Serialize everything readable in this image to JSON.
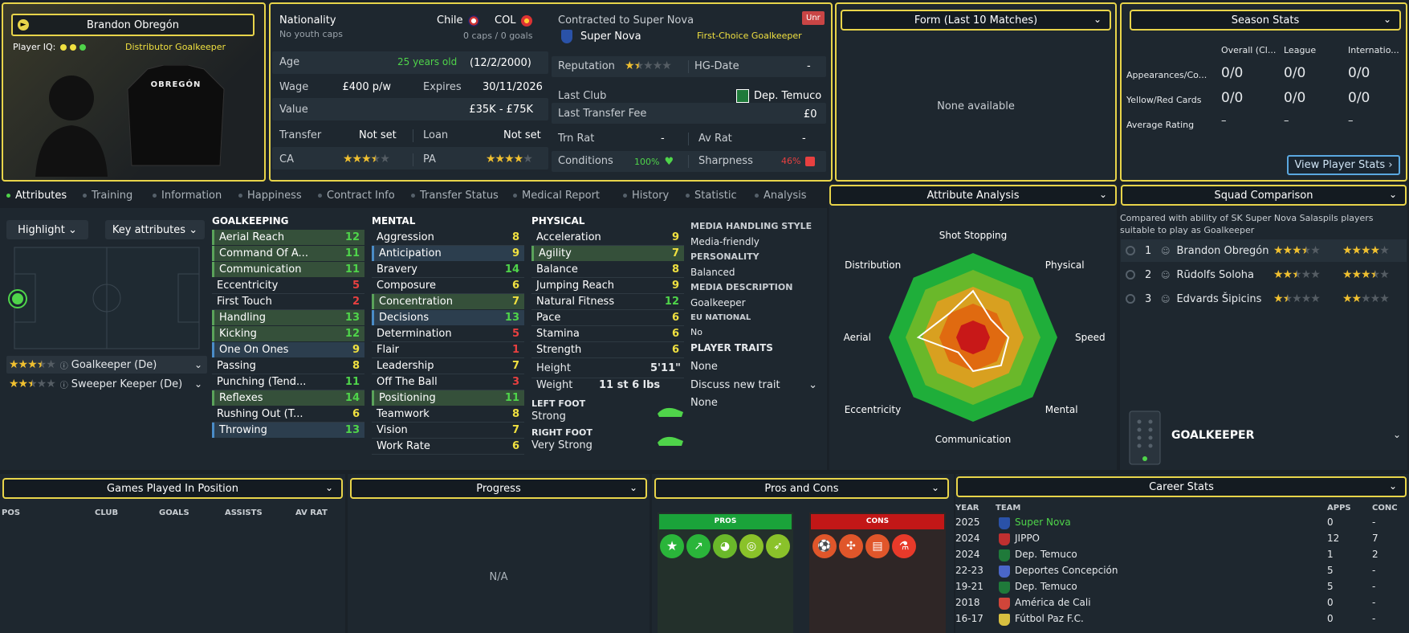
{
  "player": {
    "name": "Brandon Obregón",
    "iq_label": "Player IQ:",
    "role": "Distributor",
    "position": "Goalkeeper",
    "shirt_name": "OBREGÓN"
  },
  "info": {
    "nationality_label": "Nationality",
    "youth_caps": "No youth caps",
    "nation1": "Chile",
    "nation2": "COL",
    "caps": "0 caps / 0 goals",
    "age_label": "Age",
    "age": "25 years old",
    "dob": "(12/2/2000)",
    "wage_label": "Wage",
    "wage": "£400 p/w",
    "expires_label": "Expires",
    "expires": "30/11/2026",
    "value_label": "Value",
    "value": "£35K - £75K",
    "transfer_label": "Transfer",
    "transfer": "Not set",
    "loan_label": "Loan",
    "loan": "Not set",
    "ca_label": "CA",
    "pa_label": "PA",
    "ca_stars": 3.5,
    "pa_stars": 4
  },
  "contract": {
    "title": "Contracted to Super Nova",
    "badge": "Unr",
    "club": "Super Nova",
    "status": "First-Choice Goalkeeper",
    "rep_label": "Reputation",
    "rep_stars": 1.5,
    "hg_label": "HG-Date",
    "hg": "-",
    "last_club_label": "Last Club",
    "last_club": "Dep. Temuco",
    "fee_label": "Last Transfer Fee",
    "fee": "£0",
    "trn_label": "Trn Rat",
    "trn": "-",
    "av_label": "Av Rat",
    "av": "-",
    "cond_label": "Conditions",
    "cond": "100%",
    "sharp_label": "Sharpness",
    "sharp": "46%"
  },
  "form": {
    "title": "Form (Last 10 Matches)",
    "empty": "None available"
  },
  "season": {
    "title": "Season Stats",
    "cols": [
      "Overall (Cl...",
      "League",
      "Internatio..."
    ],
    "rows": [
      {
        "label": "Appearances/Co...",
        "v": [
          "0/0",
          "0/0",
          "0/0"
        ]
      },
      {
        "label": "Yellow/Red Cards",
        "v": [
          "0/0",
          "0/0",
          "0/0"
        ]
      },
      {
        "label": "Average Rating",
        "v": [
          "–",
          "–",
          "–"
        ]
      }
    ],
    "button": "View Player Stats"
  },
  "tabs": [
    "Attributes",
    "Training",
    "Information",
    "Happiness",
    "Contract Info",
    "Transfer Status",
    "Medical Report",
    "History",
    "Statistic",
    "Analysis"
  ],
  "controls": {
    "highlight": "Highlight",
    "key": "Key attributes"
  },
  "roles": [
    {
      "name": "Goalkeeper (De)",
      "stars": 3.5
    },
    {
      "name": "Sweeper Keeper (De)",
      "stars": 2.5
    }
  ],
  "goalkeeping": {
    "title": "GOALKEEPING",
    "items": [
      {
        "n": "Aerial Reach",
        "v": "12",
        "c": "green",
        "h": "hl"
      },
      {
        "n": "Command Of A...",
        "v": "11",
        "c": "green",
        "h": "hl"
      },
      {
        "n": "Communication",
        "v": "11",
        "c": "green",
        "h": "hl"
      },
      {
        "n": "Eccentricity",
        "v": "5",
        "c": "red",
        "h": ""
      },
      {
        "n": "First Touch",
        "v": "2",
        "c": "red",
        "h": ""
      },
      {
        "n": "Handling",
        "v": "13",
        "c": "green",
        "h": "hl"
      },
      {
        "n": "Kicking",
        "v": "12",
        "c": "green",
        "h": "hl"
      },
      {
        "n": "One On Ones",
        "v": "9",
        "c": "yellow",
        "h": "bl"
      },
      {
        "n": "Passing",
        "v": "8",
        "c": "yellow",
        "h": ""
      },
      {
        "n": "Punching (Tend...",
        "v": "11",
        "c": "green",
        "h": ""
      },
      {
        "n": "Reflexes",
        "v": "14",
        "c": "green",
        "h": "hl"
      },
      {
        "n": "Rushing Out (T...",
        "v": "6",
        "c": "yellow",
        "h": ""
      },
      {
        "n": "Throwing",
        "v": "13",
        "c": "green",
        "h": "bl"
      }
    ]
  },
  "mental": {
    "title": "MENTAL",
    "items": [
      {
        "n": "Aggression",
        "v": "8",
        "c": "yellow",
        "h": ""
      },
      {
        "n": "Anticipation",
        "v": "9",
        "c": "yellow",
        "h": "bl"
      },
      {
        "n": "Bravery",
        "v": "14",
        "c": "green",
        "h": ""
      },
      {
        "n": "Composure",
        "v": "6",
        "c": "yellow",
        "h": ""
      },
      {
        "n": "Concentration",
        "v": "7",
        "c": "yellow",
        "h": "hl"
      },
      {
        "n": "Decisions",
        "v": "13",
        "c": "green",
        "h": "bl"
      },
      {
        "n": "Determination",
        "v": "5",
        "c": "red",
        "h": ""
      },
      {
        "n": "Flair",
        "v": "1",
        "c": "red",
        "h": ""
      },
      {
        "n": "Leadership",
        "v": "7",
        "c": "yellow",
        "h": ""
      },
      {
        "n": "Off The Ball",
        "v": "3",
        "c": "red",
        "h": ""
      },
      {
        "n": "Positioning",
        "v": "11",
        "c": "green",
        "h": "hl"
      },
      {
        "n": "Teamwork",
        "v": "8",
        "c": "yellow",
        "h": ""
      },
      {
        "n": "Vision",
        "v": "7",
        "c": "yellow",
        "h": ""
      },
      {
        "n": "Work Rate",
        "v": "6",
        "c": "yellow",
        "h": ""
      }
    ]
  },
  "physical": {
    "title": "PHYSICAL",
    "items": [
      {
        "n": "Acceleration",
        "v": "9",
        "c": "yellow",
        "h": ""
      },
      {
        "n": "Agility",
        "v": "7",
        "c": "yellow",
        "h": "hl"
      },
      {
        "n": "Balance",
        "v": "8",
        "c": "yellow",
        "h": ""
      },
      {
        "n": "Jumping Reach",
        "v": "9",
        "c": "yellow",
        "h": ""
      },
      {
        "n": "Natural Fitness",
        "v": "12",
        "c": "green",
        "h": ""
      },
      {
        "n": "Pace",
        "v": "6",
        "c": "yellow",
        "h": ""
      },
      {
        "n": "Stamina",
        "v": "6",
        "c": "yellow",
        "h": ""
      },
      {
        "n": "Strength",
        "v": "6",
        "c": "yellow",
        "h": ""
      }
    ],
    "height_label": "Height",
    "height": "5'11\"",
    "weight_label": "Weight",
    "weight": "11 st 6 lbs",
    "left_foot_label": "LEFT FOOT",
    "left_foot": "Strong",
    "right_foot_label": "RIGHT FOOT",
    "right_foot": "Very Strong"
  },
  "media": {
    "style_label": "MEDIA HANDLING STYLE",
    "style": "Media-friendly",
    "pers_label": "PERSONALITY",
    "pers": "Balanced",
    "desc_label": "MEDIA DESCRIPTION",
    "desc": "Goalkeeper",
    "eu_label": "EU NATIONAL",
    "eu": "No",
    "traits_label": "PLAYER TRAITS",
    "traits": "None",
    "discuss": "Discuss new trait",
    "discuss_val": "None"
  },
  "analysis": {
    "title": "Attribute Analysis",
    "axes": [
      "Shot Stopping",
      "Physical",
      "Speed",
      "Mental",
      "Communication",
      "Eccentricity",
      "Aerial",
      "Distribution"
    ],
    "values": [
      0.55,
      0.3,
      0.42,
      0.47,
      0.4,
      0.25,
      0.65,
      0.4
    ]
  },
  "squad": {
    "title": "Squad Comparison",
    "desc": "Compared with ability of SK Super Nova Salaspils players suitable to play as Goalkeeper",
    "rows": [
      {
        "rank": "1",
        "name": "Brandon Obregón",
        "ca": 3.5,
        "pa": 4
      },
      {
        "rank": "2",
        "name": "Rūdolfs Soloha",
        "ca": 2.5,
        "pa": 3.5
      },
      {
        "rank": "3",
        "name": "Edvards Šipicins",
        "ca": 1.5,
        "pa": 2
      }
    ],
    "position": "GOALKEEPER"
  },
  "games": {
    "title": "Games Played In Position",
    "cols": [
      "POS",
      "CLUB",
      "GOALS",
      "ASSISTS",
      "AV RAT"
    ]
  },
  "progress": {
    "title": "Progress",
    "empty": "N/A"
  },
  "proscons": {
    "title": "Pros and Cons",
    "pros": "PROS",
    "cons": "CONS"
  },
  "career": {
    "title": "Career Stats",
    "cols": [
      "YEAR",
      "TEAM",
      "APPS",
      "CONC"
    ],
    "rows": [
      {
        "y": "2025",
        "t": "Super Nova",
        "a": "0",
        "c": "-",
        "cur": true
      },
      {
        "y": "2024",
        "t": "JIPPO",
        "a": "12",
        "c": "7"
      },
      {
        "y": "2024",
        "t": "Dep. Temuco",
        "a": "1",
        "c": "2"
      },
      {
        "y": "22-23",
        "t": "Deportes Concepción",
        "a": "5",
        "c": "-"
      },
      {
        "y": "19-21",
        "t": "Dep. Temuco",
        "a": "5",
        "c": "-"
      },
      {
        "y": "2018",
        "t": "América de Cali",
        "a": "0",
        "c": "-"
      },
      {
        "y": "16-17",
        "t": "Fútbol Paz F.C.",
        "a": "0",
        "c": "-"
      }
    ]
  },
  "colors": {
    "accent": "#e8d44a",
    "green": "#4fd44a",
    "red": "#e84040",
    "yellow": "#f0e040"
  }
}
